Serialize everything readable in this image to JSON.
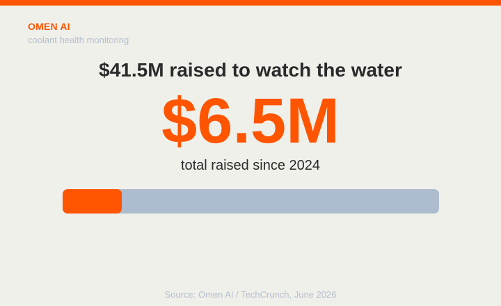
{
  "brand": {
    "name": "OMEN AI",
    "tagline": "coolant health monitoring"
  },
  "headline": "$41.5M raised to watch the water",
  "stat": {
    "value": "$6.5M",
    "caption": "total raised since 2024"
  },
  "progress": {
    "fraction": 0.157
  },
  "source": "Source: Omen AI / TechCrunch, June 2026",
  "colors": {
    "accent": "#ff5500",
    "track": "#aebcd0",
    "background": "#f0f0eb",
    "text": "#2a2a2a",
    "muted": "#b4bfcc"
  }
}
